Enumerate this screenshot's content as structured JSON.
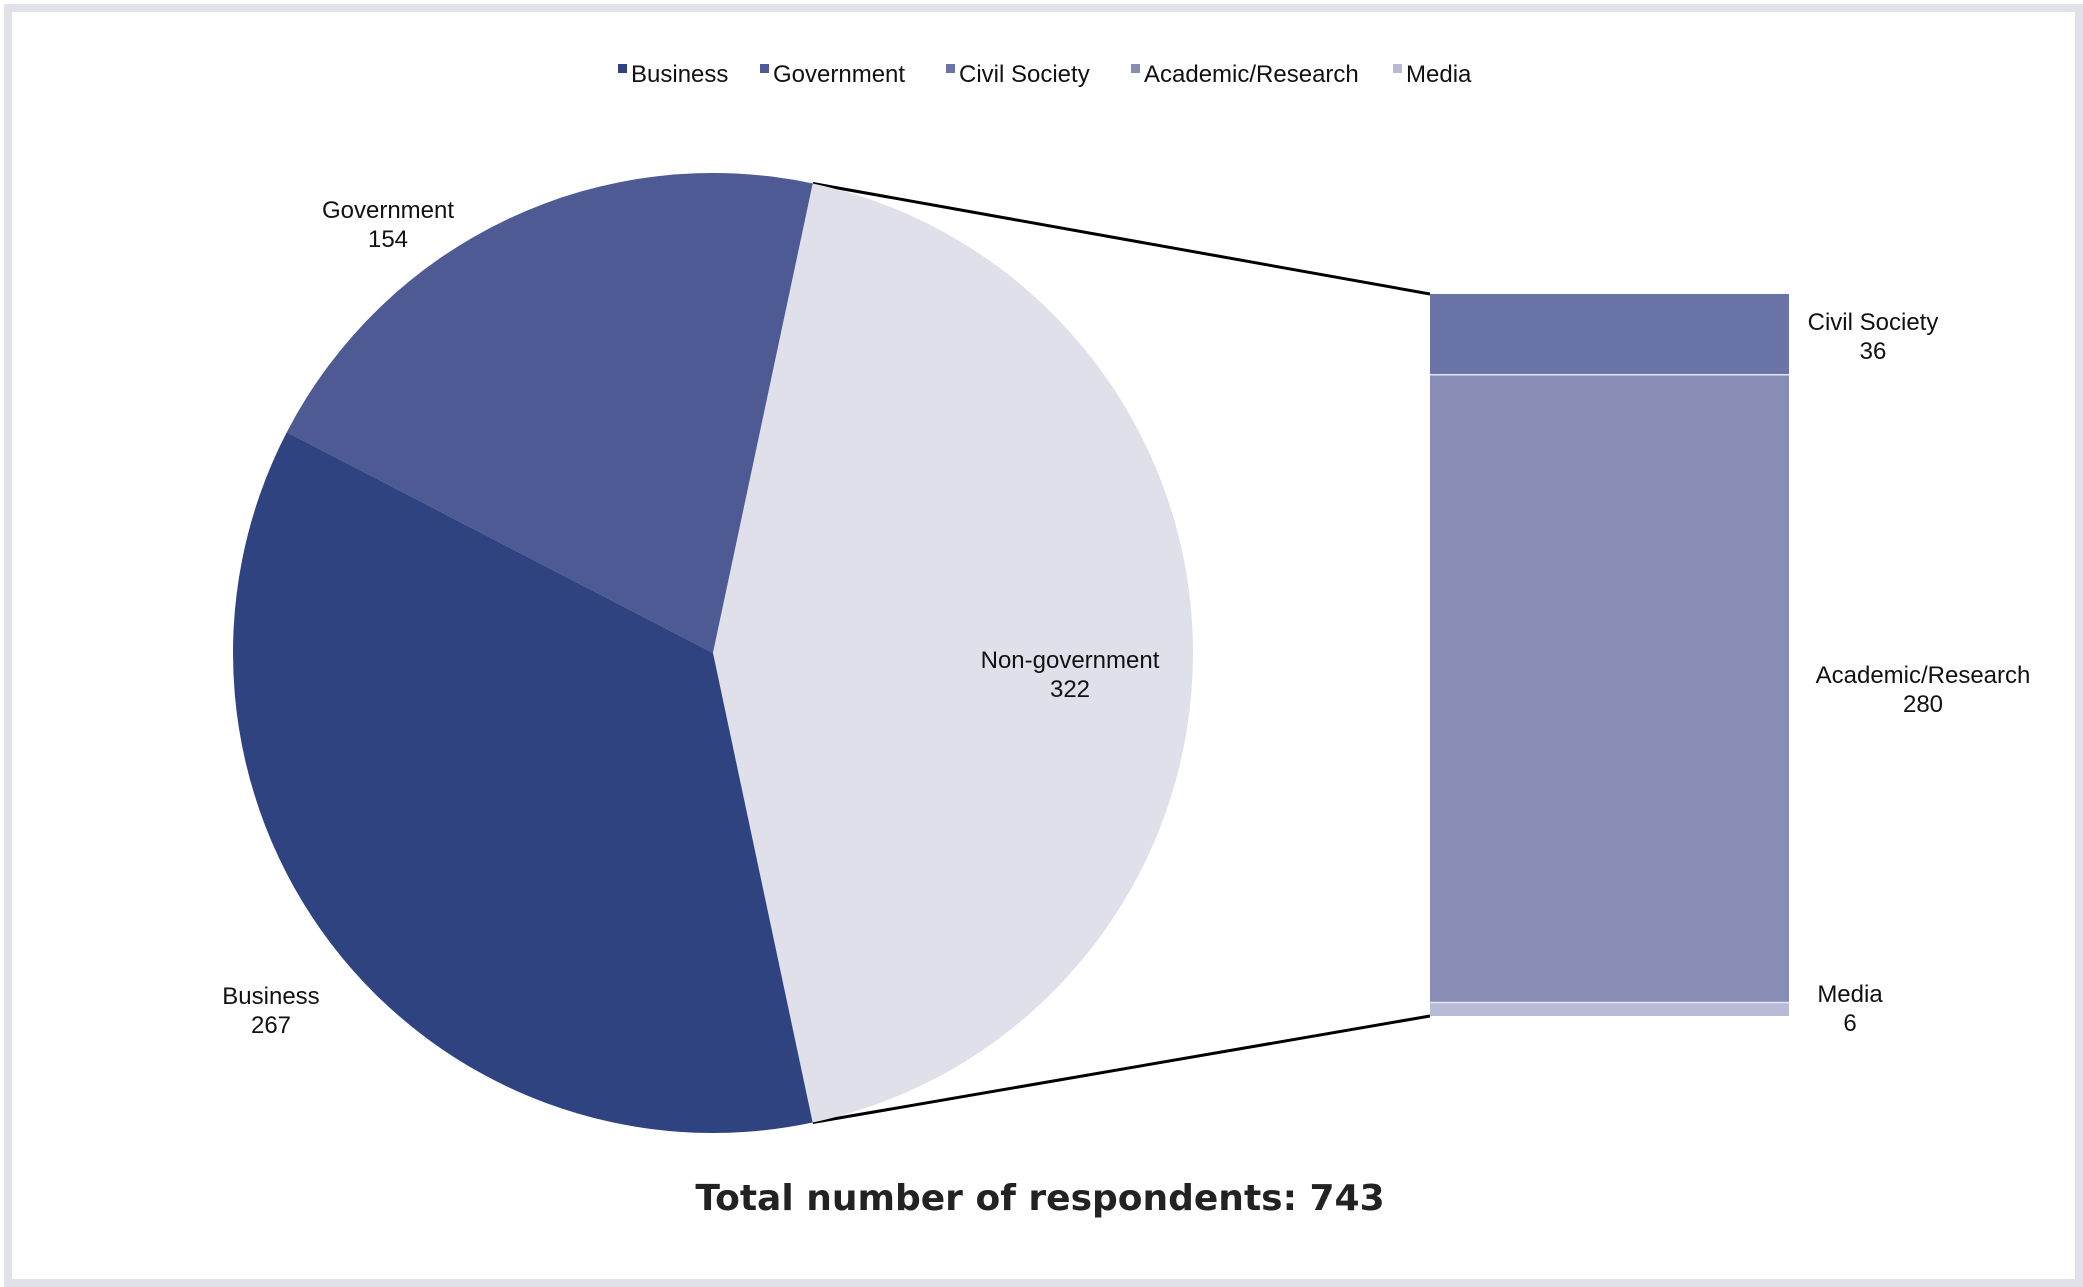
{
  "chart_data": {
    "type": "pie",
    "subtype": "pie-of-bar",
    "legend": {
      "placement": "top-center",
      "entries": [
        {
          "name": "Business",
          "color": "#2e4380"
        },
        {
          "name": "Government",
          "color": "#4e5a94"
        },
        {
          "name": "Civil Society",
          "color": "#6b74a6"
        },
        {
          "name": "Academic/Research",
          "color": "#888db5"
        },
        {
          "name": "Media",
          "color": "#b8bbd6"
        }
      ]
    },
    "pie": {
      "slices": [
        {
          "label": "Government",
          "value": 154,
          "color": "#4e5a94"
        },
        {
          "label": "Non-government",
          "value": 322,
          "color": "#e0e0eb"
        },
        {
          "label": "Business",
          "value": 267,
          "color": "#2e4380"
        }
      ]
    },
    "bar": {
      "source": "Non-government",
      "segments": [
        {
          "label": "Civil Society",
          "value": 36,
          "color": "#6b74a6"
        },
        {
          "label": "Academic/Research",
          "value": 280,
          "color": "#888db5"
        },
        {
          "label": "Media",
          "value": 6,
          "color": "#b8bbd6"
        }
      ]
    },
    "footer": "Total number of respondents: 743"
  }
}
